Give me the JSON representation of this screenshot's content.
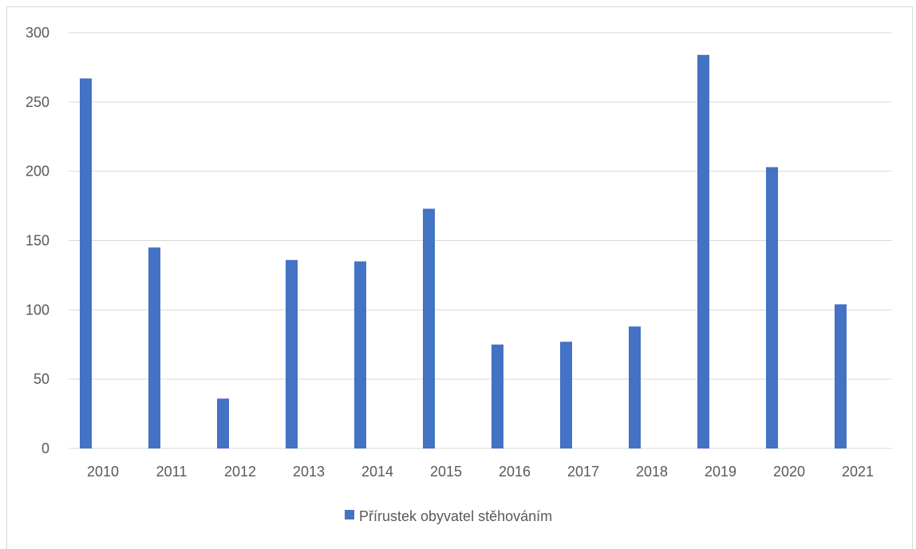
{
  "chart_data": {
    "type": "bar",
    "categories": [
      "2010",
      "2011",
      "2012",
      "2013",
      "2014",
      "2015",
      "2016",
      "2017",
      "2018",
      "2019",
      "2020",
      "2021"
    ],
    "series": [
      {
        "name": "Přírustek obyvatel stěhováním",
        "color": "#4472c4",
        "values": [
          267,
          145,
          36,
          136,
          135,
          173,
          75,
          77,
          88,
          284,
          203,
          104
        ]
      }
    ],
    "ylim": [
      0,
      300
    ],
    "yticks": [
      0,
      50,
      100,
      150,
      200,
      250,
      300
    ],
    "grid": true,
    "legend_position": "bottom",
    "title": "",
    "xlabel": "",
    "ylabel": ""
  }
}
